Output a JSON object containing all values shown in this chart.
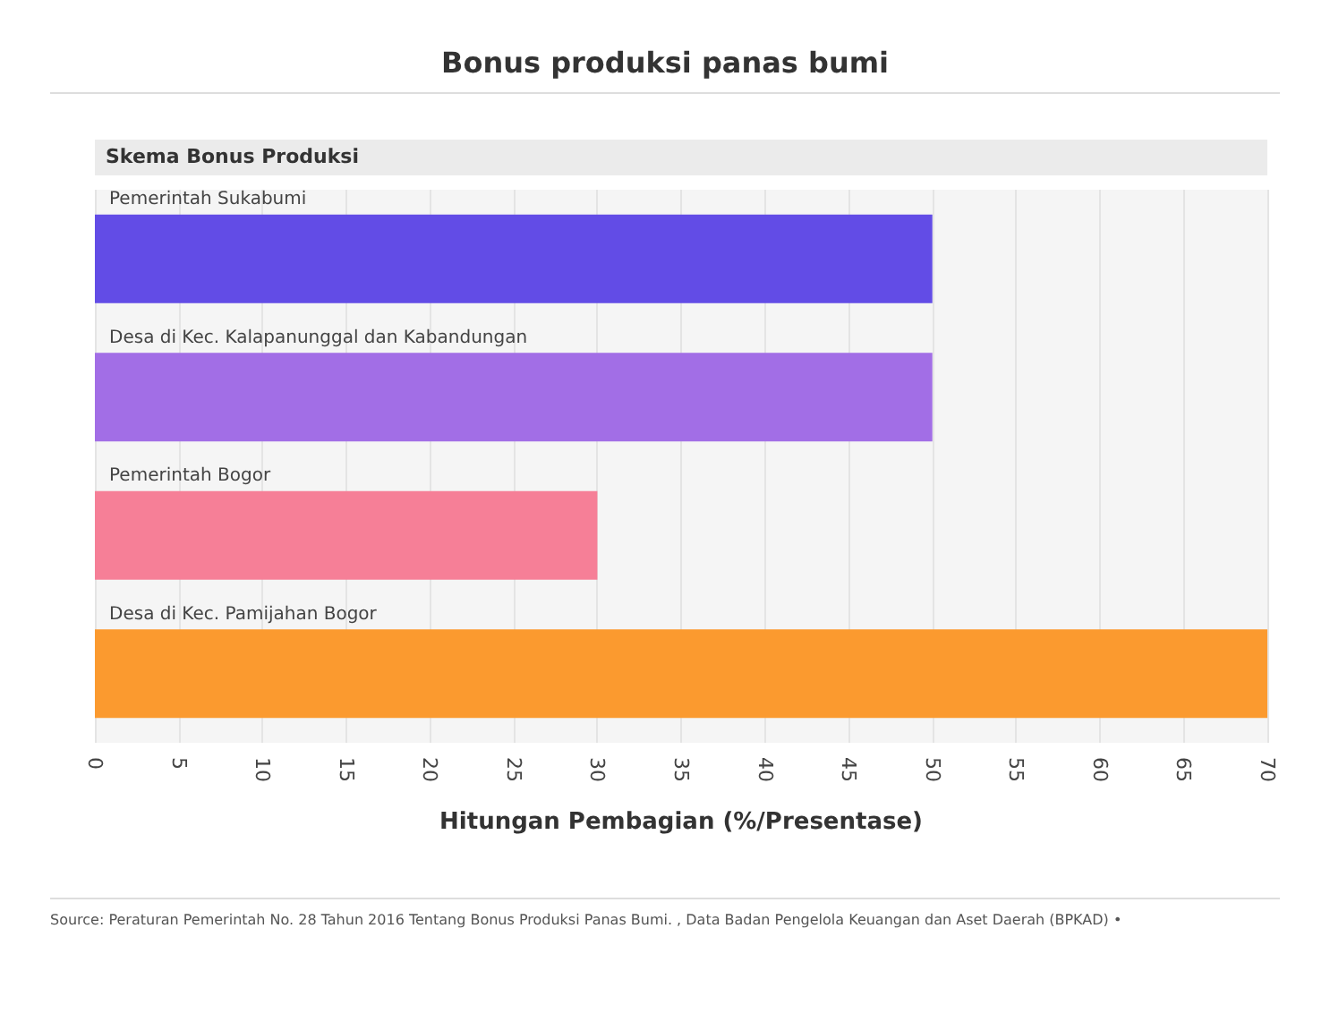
{
  "chart_data": {
    "type": "bar",
    "orientation": "horizontal",
    "title": "Bonus produksi panas bumi",
    "ylabel": "Skema Bonus Produksi",
    "xlabel": "Hitungan Pembagian (%/Presentase)",
    "categories": [
      "Pemerintah Sukabumi",
      "Desa di Kec. Kalapanunggal dan Kabandungan",
      "Pemerintah Bogor",
      "Desa di Kec. Pamijahan Bogor"
    ],
    "values": [
      50,
      50,
      30,
      70
    ],
    "colors": [
      "#624ce6",
      "#a26ee6",
      "#f67f97",
      "#fb9a2f"
    ],
    "xlim": [
      0,
      70
    ],
    "xticks": [
      0,
      5,
      10,
      15,
      20,
      25,
      30,
      35,
      40,
      45,
      50,
      55,
      60,
      65,
      70
    ],
    "grid": "x",
    "annotations": [
      "Source: Peraturan Pemerintah No. 28 Tahun 2016 Tentang Bonus Produksi Panas Bumi. , Data Badan Pengelola Keuangan dan Aset Daerah (BPKAD) •"
    ]
  }
}
